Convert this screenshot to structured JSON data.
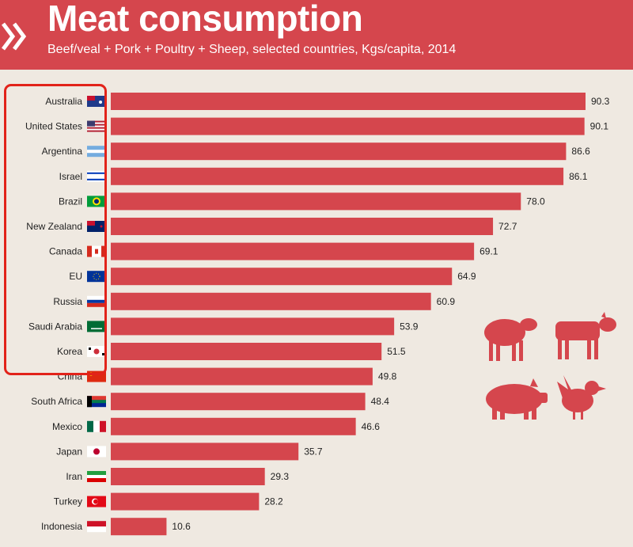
{
  "header": {
    "title": "Meat consumption",
    "subtitle": "Beef/veal + Pork + Poultry + Sheep, selected countries, Kgs/capita, 2014"
  },
  "colors": {
    "bar": "#d5464d",
    "header": "#d5464d",
    "background": "#efe9e1",
    "highlight": "#e2231a",
    "icons": "#d5464d"
  },
  "icons": [
    "sheep-icon",
    "cow-icon",
    "pig-icon",
    "chicken-icon"
  ],
  "chart_data": {
    "type": "bar",
    "orientation": "horizontal",
    "title": "Meat consumption",
    "subtitle": "Beef/veal + Pork + Poultry + Sheep, selected countries, Kgs/capita, 2014",
    "categories": [
      "Australia",
      "United States",
      "Argentina",
      "Israel",
      "Brazil",
      "New Zealand",
      "Canada",
      "EU",
      "Russia",
      "Saudi Arabia",
      "Korea",
      "China",
      "South Africa",
      "Mexico",
      "Japan",
      "Iran",
      "Turkey",
      "Indonesia"
    ],
    "values": [
      90.3,
      90.1,
      86.6,
      86.1,
      78.0,
      72.7,
      69.1,
      64.9,
      60.9,
      53.9,
      51.5,
      49.8,
      48.4,
      46.6,
      35.7,
      29.3,
      28.2,
      10.6
    ],
    "value_labels": [
      "90.3",
      "90.1",
      "86.6",
      "86.1",
      "78.0",
      "72.7",
      "69.1",
      "64.9",
      "60.9",
      "53.9",
      "51.5",
      "49.8",
      "48.4",
      "46.6",
      "35.7",
      "29.3",
      "28.2",
      "10.6"
    ],
    "flags": [
      "australia-flag",
      "usa-flag",
      "argentina-flag",
      "israel-flag",
      "brazil-flag",
      "new-zealand-flag",
      "canada-flag",
      "eu-flag",
      "russia-flag",
      "saudi-arabia-flag",
      "korea-flag",
      "china-flag",
      "south-africa-flag",
      "mexico-flag",
      "japan-flag",
      "iran-flag",
      "turkey-flag",
      "indonesia-flag"
    ],
    "highlighted_categories": [
      "Australia",
      "United States",
      "Argentina",
      "Israel",
      "Brazil",
      "New Zealand",
      "Canada",
      "EU",
      "Russia",
      "Saudi Arabia",
      "Korea"
    ],
    "xlim": [
      0,
      90.3
    ],
    "grid": false,
    "legend": "none"
  }
}
